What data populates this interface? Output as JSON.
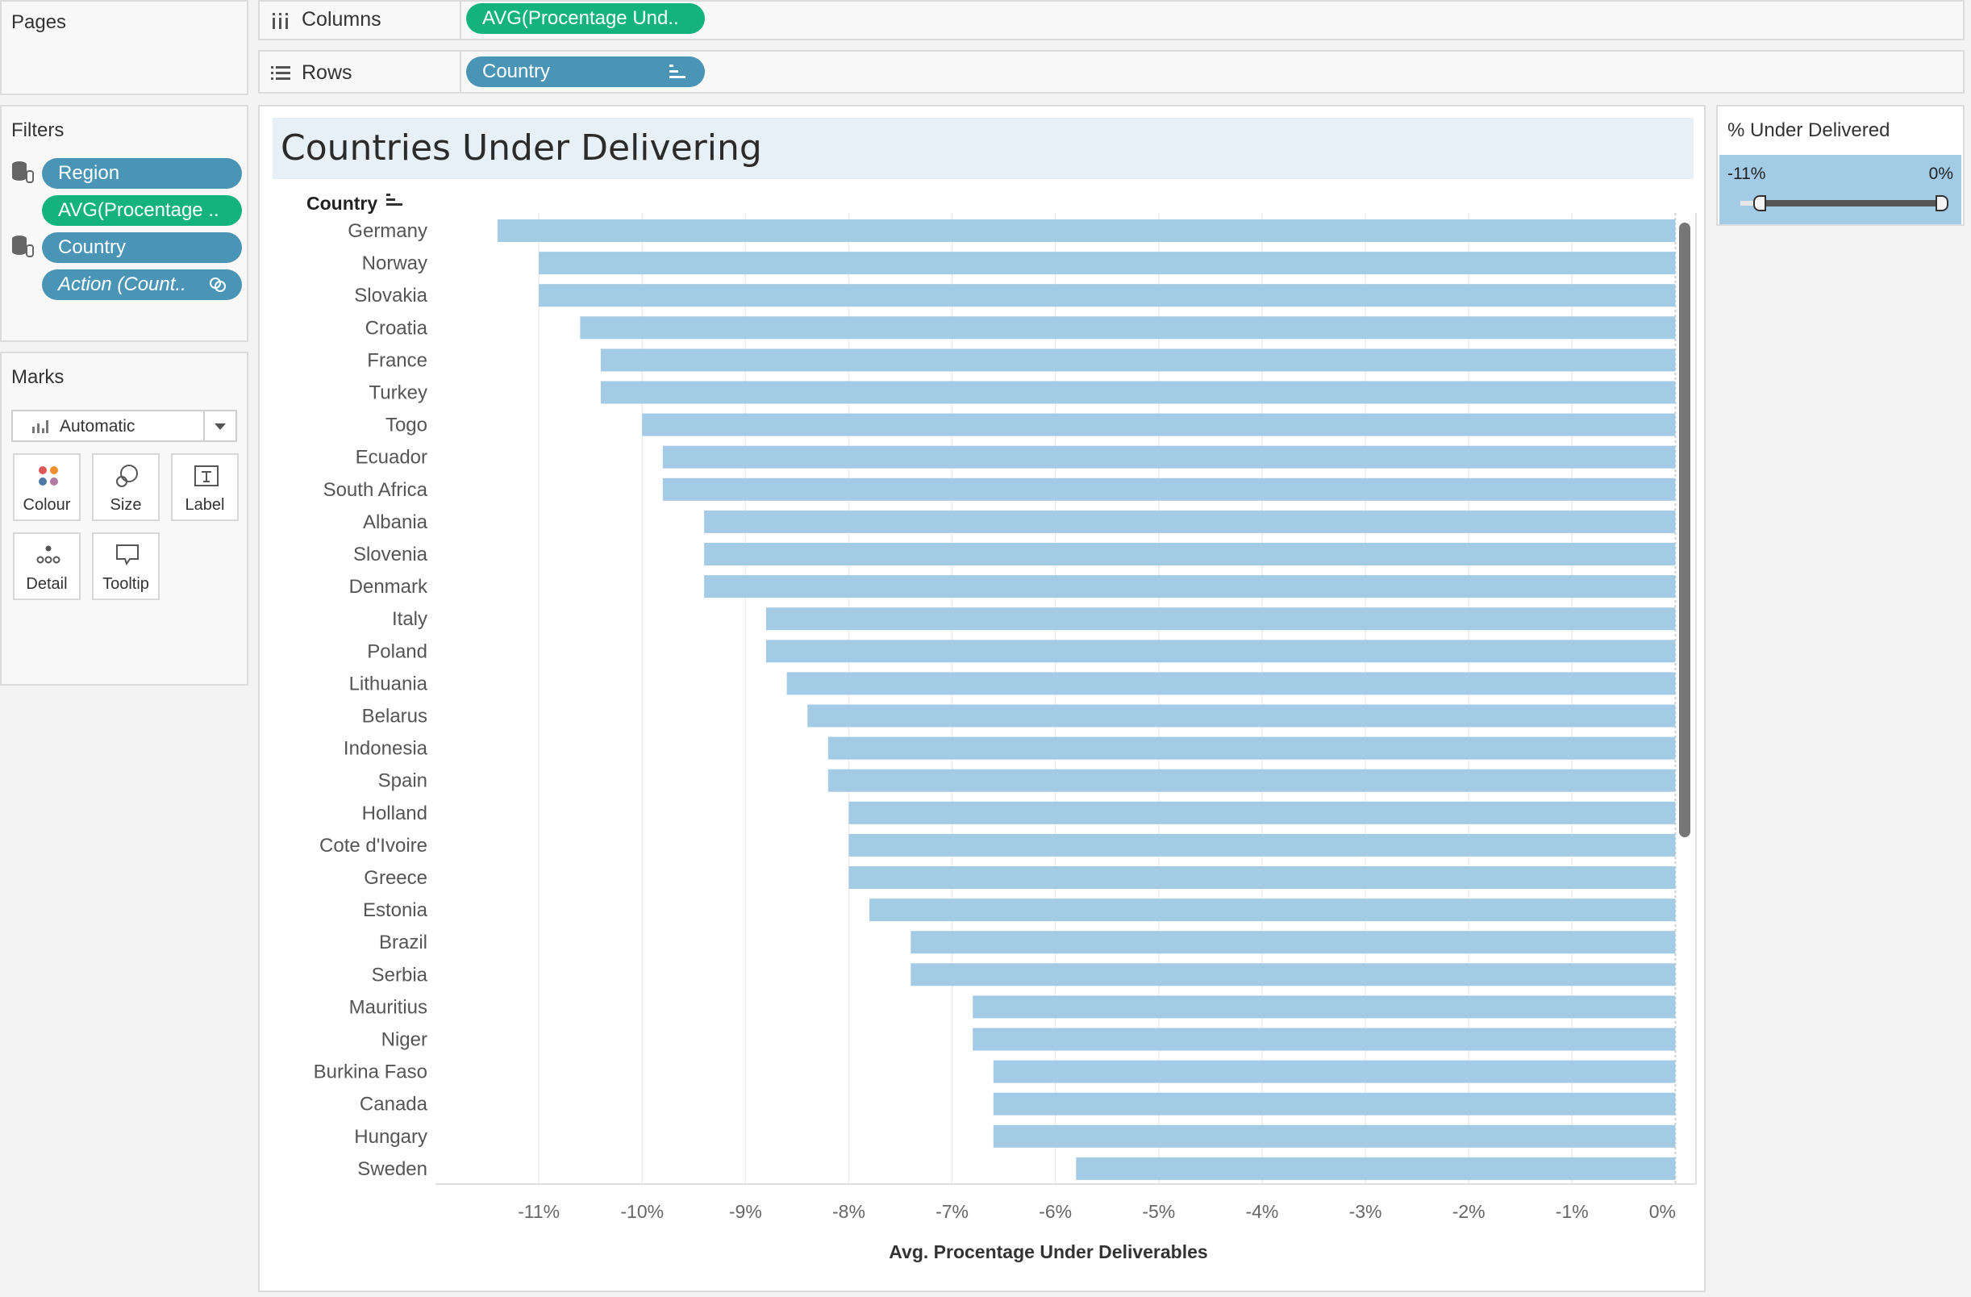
{
  "pages": {
    "title": "Pages"
  },
  "columns_shelf": {
    "label": "Columns",
    "pill": "AVG(Procentage Und.."
  },
  "rows_shelf": {
    "label": "Rows",
    "pill": "Country"
  },
  "filters": {
    "title": "Filters",
    "items": [
      {
        "label": "Region",
        "style": "blue"
      },
      {
        "label": "AVG(Procentage ..",
        "style": "green"
      },
      {
        "label": "Country",
        "style": "blue"
      },
      {
        "label": "Action (Count..",
        "style": "blue-italic"
      }
    ]
  },
  "marks": {
    "title": "Marks",
    "type": "Automatic",
    "buttons": [
      "Colour",
      "Size",
      "Label",
      "Detail",
      "Tooltip"
    ]
  },
  "legend": {
    "title": "% Under Delivered",
    "min": "-11%",
    "max": "0%",
    "slider_min_fraction": 0.07,
    "slider_max_fraction": 1.0
  },
  "colors": {
    "bar": "#a3cbe6",
    "green_pill": "#14b37d",
    "blue_pill": "#4a94b5"
  },
  "chart_data": {
    "type": "bar",
    "orientation": "horizontal",
    "title": "Countries Under Delivering",
    "row_header": "Country",
    "xlabel": "Avg. Procentage Under Deliverables",
    "xlim": [
      -12,
      0.2
    ],
    "x_ticks": [
      -11,
      -10,
      -9,
      -8,
      -7,
      -6,
      -5,
      -4,
      -3,
      -2,
      -1,
      0
    ],
    "x_tick_labels": [
      "-11%",
      "-10%",
      "-9%",
      "-8%",
      "-7%",
      "-6%",
      "-5%",
      "-4%",
      "-3%",
      "-2%",
      "-1%",
      "0%"
    ],
    "grid": true,
    "categories": [
      "Germany",
      "Norway",
      "Slovakia",
      "Croatia",
      "France",
      "Turkey",
      "Togo",
      "Ecuador",
      "South Africa",
      "Albania",
      "Slovenia",
      "Denmark",
      "Italy",
      "Poland",
      "Lithuania",
      "Belarus",
      "Indonesia",
      "Spain",
      "Holland",
      "Cote d'Ivoire",
      "Greece",
      "Estonia",
      "Brazil",
      "Serbia",
      "Mauritius",
      "Niger",
      "Burkina Faso",
      "Canada",
      "Hungary",
      "Sweden"
    ],
    "values": [
      -11.4,
      -11.0,
      -11.0,
      -10.6,
      -10.4,
      -10.4,
      -10.0,
      -9.8,
      -9.8,
      -9.4,
      -9.4,
      -9.4,
      -8.8,
      -8.8,
      -8.6,
      -8.4,
      -8.2,
      -8.2,
      -8.0,
      -8.0,
      -8.0,
      -7.8,
      -7.4,
      -7.4,
      -6.8,
      -6.8,
      -6.6,
      -6.6,
      -6.6,
      -5.8
    ]
  }
}
